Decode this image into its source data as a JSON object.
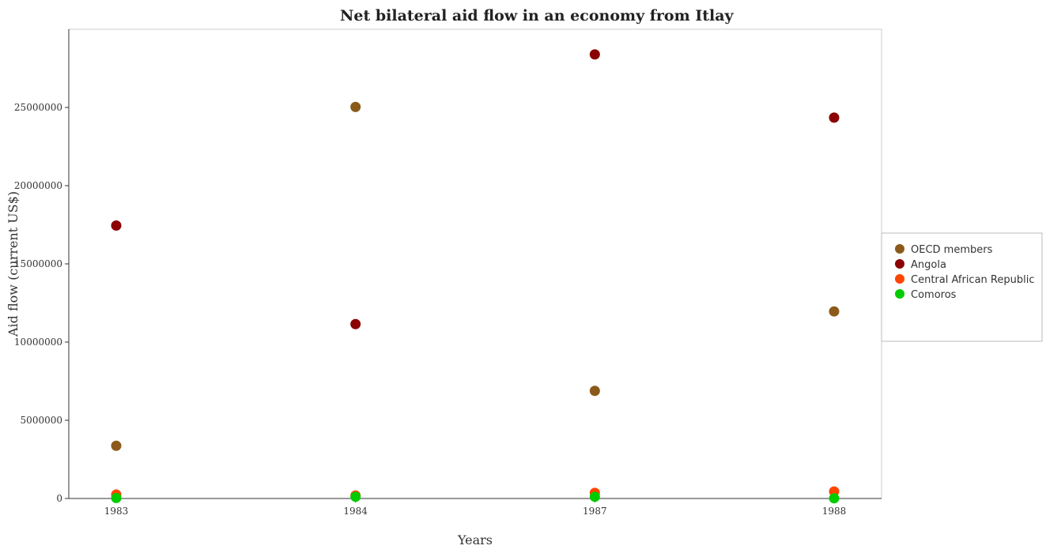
{
  "chart_data": {
    "type": "scatter",
    "title": "Net bilateral aid flow in an economy from Itlay",
    "xlabel": "Years",
    "ylabel": "Aid flow (current US$)",
    "categories": [
      "1983",
      "1984",
      "1987",
      "1988"
    ],
    "ylim": [
      0,
      30000000
    ],
    "yticks": [
      0,
      5000000,
      10000000,
      15000000,
      20000000,
      25000000
    ],
    "ytick_labels": [
      "0",
      "5000000",
      "10000000",
      "15000000",
      "20000000",
      "25000000"
    ],
    "grid": false,
    "legend_position": "right",
    "series": [
      {
        "name": "OECD members",
        "color": "#8B5A1A",
        "values": [
          3370000,
          25030000,
          6880000,
          11960000
        ]
      },
      {
        "name": "Angola",
        "color": "#8B0000",
        "values": [
          17450000,
          11150000,
          28390000,
          24350000
        ]
      },
      {
        "name": "Central African Republic",
        "color": "#FF4500",
        "values": [
          250000,
          190000,
          360000,
          450000
        ]
      },
      {
        "name": "Comoros",
        "color": "#00CC00",
        "values": [
          30000,
          110000,
          110000,
          10000
        ]
      }
    ]
  }
}
